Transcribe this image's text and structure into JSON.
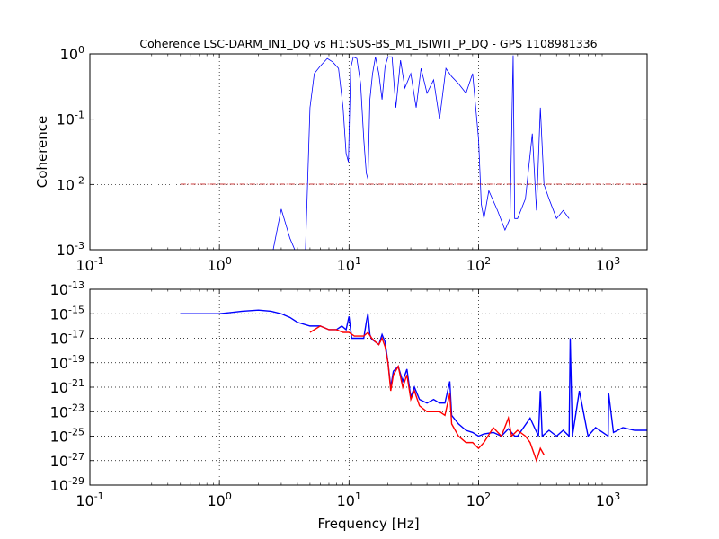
{
  "figure": {
    "title": "Coherence LSC-DARM_IN1_DQ vs H1:SUS-BS_M1_ISIWIT_P_DQ - GPS 1108981336"
  },
  "chart_data": [
    {
      "type": "line",
      "title": "Coherence LSC-DARM_IN1_DQ vs H1:SUS-BS_M1_ISIWIT_P_DQ - GPS 1108981336",
      "xlabel": "",
      "ylabel": "Coherence",
      "xscale": "log",
      "yscale": "log",
      "xlim": [
        0.1,
        2000
      ],
      "ylim": [
        0.001,
        1
      ],
      "grid": true,
      "x_ticks": [
        {
          "value": 0.1,
          "base": "10",
          "exp": "-1"
        },
        {
          "value": 1,
          "base": "10",
          "exp": "0"
        },
        {
          "value": 10,
          "base": "10",
          "exp": "1"
        },
        {
          "value": 100,
          "base": "10",
          "exp": "2"
        },
        {
          "value": 1000,
          "base": "10",
          "exp": "3"
        }
      ],
      "y_ticks": [
        {
          "value": 0.001,
          "base": "10",
          "exp": "-3"
        },
        {
          "value": 0.01,
          "base": "10",
          "exp": "-2"
        },
        {
          "value": 0.1,
          "base": "10",
          "exp": "-1"
        },
        {
          "value": 1,
          "base": "10",
          "exp": "0"
        }
      ],
      "series": [
        {
          "color": "#0000ff",
          "x": [
            2.6,
            3.0,
            3.5,
            4.0,
            4.6,
            5.0,
            5.4,
            6.0,
            6.8,
            7.5,
            8.3,
            9.0,
            9.5,
            9.9,
            10.3,
            10.8,
            11.5,
            12.3,
            13.0,
            13.6,
            14.0,
            14.5,
            15.2,
            16.0,
            17.0,
            18.0,
            19.0,
            20.0,
            21.5,
            23.0,
            25.0,
            27.0,
            30.0,
            33.0,
            36.0,
            40.0,
            45.0,
            50.0,
            56.0,
            62.0,
            70.0,
            80.0,
            90.0,
            100.0,
            105.0,
            110.0,
            120.0,
            140.0,
            160.0,
            175.0,
            185.0,
            190.0,
            200.0,
            230.0,
            260.0,
            280.0,
            300.0,
            320.0,
            350.0,
            400.0,
            450.0,
            500.0
          ],
          "y": [
            0.001,
            0.0042,
            0.0015,
            0.0008,
            0.0008,
            0.15,
            0.5,
            0.65,
            0.85,
            0.75,
            0.6,
            0.15,
            0.03,
            0.022,
            0.6,
            0.9,
            0.85,
            0.35,
            0.05,
            0.015,
            0.012,
            0.2,
            0.5,
            0.9,
            0.5,
            0.2,
            0.65,
            0.9,
            0.9,
            0.15,
            0.8,
            0.3,
            0.5,
            0.15,
            0.6,
            0.25,
            0.4,
            0.1,
            0.6,
            0.45,
            0.35,
            0.25,
            0.5,
            0.05,
            0.005,
            0.003,
            0.008,
            0.004,
            0.002,
            0.003,
            0.95,
            0.003,
            0.003,
            0.006,
            0.06,
            0.004,
            0.15,
            0.01,
            0.006,
            0.003,
            0.004,
            0.003
          ]
        },
        {
          "color": "#bf0000",
          "style": "dash-dot",
          "x": [
            0.5,
            2000
          ],
          "y": [
            0.0101,
            0.0101
          ]
        }
      ]
    },
    {
      "type": "line",
      "title": "",
      "xlabel": "Frequency [Hz]",
      "ylabel": "",
      "xscale": "log",
      "yscale": "log",
      "xlim": [
        0.1,
        2000
      ],
      "ylim": [
        1e-29,
        1e-13
      ],
      "grid": true,
      "x_ticks": [
        {
          "value": 0.1,
          "base": "10",
          "exp": "-1"
        },
        {
          "value": 1,
          "base": "10",
          "exp": "0"
        },
        {
          "value": 10,
          "base": "10",
          "exp": "1"
        },
        {
          "value": 100,
          "base": "10",
          "exp": "2"
        },
        {
          "value": 1000,
          "base": "10",
          "exp": "3"
        }
      ],
      "y_ticks": [
        {
          "value": 1e-29,
          "base": "10",
          "exp": "-29"
        },
        {
          "value": 1e-27,
          "base": "10",
          "exp": "-27"
        },
        {
          "value": 1e-25,
          "base": "10",
          "exp": "-25"
        },
        {
          "value": 1e-23,
          "base": "10",
          "exp": "-23"
        },
        {
          "value": 1e-21,
          "base": "10",
          "exp": "-21"
        },
        {
          "value": 1e-19,
          "base": "10",
          "exp": "-19"
        },
        {
          "value": 1e-17,
          "base": "10",
          "exp": "-17"
        },
        {
          "value": 1e-15,
          "base": "10",
          "exp": "-15"
        },
        {
          "value": 1e-13,
          "base": "10",
          "exp": "-13"
        }
      ],
      "series": [
        {
          "color": "#0000ff",
          "x": [
            0.5,
            1.0,
            1.5,
            2.0,
            2.5,
            3.0,
            3.5,
            4.0,
            5.0,
            6.0,
            7.0,
            8.0,
            8.8,
            9.5,
            10.0,
            10.5,
            11.0,
            12.0,
            13.0,
            13.6,
            14.0,
            14.5,
            15.0,
            16.0,
            17.0,
            18.0,
            19.0,
            20.0,
            21.0,
            22.0,
            24.0,
            26.0,
            28.0,
            30.0,
            32.0,
            35.0,
            40.0,
            45.0,
            50.0,
            55.0,
            60.0,
            62.0,
            70.0,
            80.0,
            90.0,
            100.0,
            110.0,
            130.0,
            150.0,
            170.0,
            190.0,
            200.0,
            250.0,
            290.0,
            300.0,
            310.0,
            350.0,
            400.0,
            450.0,
            500.0,
            510.0,
            530.0,
            600.0,
            700.0,
            800.0,
            1000.0,
            1010.0,
            1100.0,
            1300.0,
            1600.0,
            2000.0
          ],
          "y": [
            1e-15,
            1e-15,
            1.6e-15,
            2e-15,
            1.6e-15,
            1e-15,
            5e-16,
            2e-16,
            1e-16,
            1e-16,
            5e-17,
            5e-17,
            1e-16,
            5e-17,
            6e-16,
            1e-17,
            1e-17,
            1e-17,
            1e-17,
            2e-16,
            1e-15,
            2e-17,
            8e-18,
            5e-18,
            3e-18,
            2e-17,
            5e-18,
            1e-19,
            1e-21,
            2e-20,
            5e-20,
            3e-21,
            3e-20,
            1.5e-22,
            1e-21,
            1e-22,
            5e-23,
            1e-22,
            5e-23,
            5e-23,
            3e-21,
            5e-24,
            1e-24,
            3e-25,
            2e-25,
            1e-25,
            1.5e-25,
            2e-25,
            1e-25,
            4e-25,
            1e-25,
            1e-25,
            3e-24,
            1e-25,
            5e-22,
            1e-25,
            3e-25,
            1e-25,
            3e-25,
            1e-25,
            1e-17,
            1e-25,
            5e-22,
            1e-25,
            5e-25,
            1e-25,
            3e-22,
            2e-25,
            5e-25,
            3e-25,
            3e-25
          ]
        },
        {
          "color": "#ff0000",
          "x": [
            5.0,
            6.0,
            7.0,
            8.0,
            9.0,
            10.0,
            11.0,
            12.0,
            13.0,
            14.0,
            15.0,
            16.0,
            17.0,
            18.0,
            19.0,
            20.0,
            21.0,
            22.0,
            24.0,
            26.0,
            28.0,
            30.0,
            32.0,
            35.0,
            40.0,
            45.0,
            50.0,
            55.0,
            60.0,
            62.0,
            70.0,
            80.0,
            90.0,
            100.0,
            110.0,
            130.0,
            150.0,
            170.0,
            180.0,
            200.0,
            230.0,
            250.0,
            280.0,
            300.0,
            320.0
          ],
          "y": [
            3e-17,
            1e-16,
            5e-17,
            5e-17,
            3e-17,
            3e-17,
            1.5e-17,
            1.5e-17,
            1.5e-17,
            3e-17,
            1e-17,
            5e-18,
            3e-18,
            1e-17,
            2e-18,
            1e-19,
            5e-22,
            1e-20,
            5e-20,
            1e-21,
            1e-20,
            1e-22,
            5e-22,
            3e-23,
            1e-23,
            1e-23,
            1e-23,
            5e-24,
            3e-22,
            1e-24,
            1e-25,
            3e-26,
            3e-26,
            1e-26,
            3e-26,
            5e-25,
            1e-25,
            3e-24,
            1e-25,
            3e-25,
            1e-25,
            3e-26,
            1e-27,
            1e-26,
            3e-27
          ]
        }
      ]
    }
  ]
}
